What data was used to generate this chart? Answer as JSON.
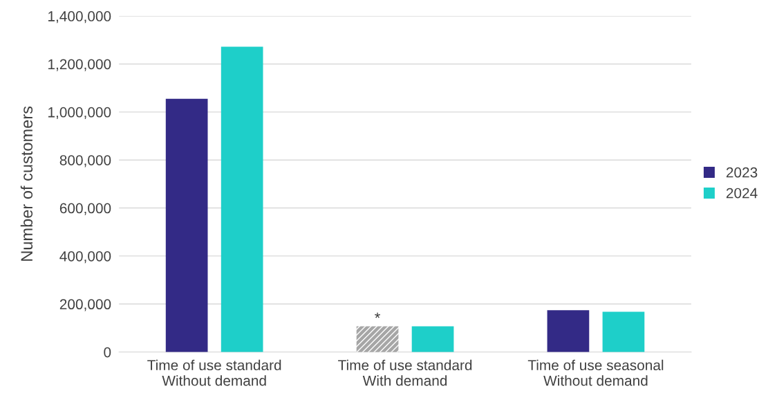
{
  "chart_data": {
    "type": "bar",
    "ylabel": "Number of customers",
    "categories": [
      "Time of use standard\nWithout demand",
      "Time of use standard\nWith demand",
      "Time of use seasonal\nWithout demand"
    ],
    "series": [
      {
        "name": "2023",
        "color": "#332a86",
        "colors": [
          "#332a86",
          "#a6a6a6",
          "#332a86"
        ],
        "values": [
          1055000,
          107000,
          174000
        ]
      },
      {
        "name": "2024",
        "color": "#1ecfc9",
        "values": [
          1272000,
          107000,
          168000
        ]
      }
    ],
    "ylim": [
      0,
      1400000
    ],
    "yticks": [
      {
        "value": 0,
        "label": "0"
      },
      {
        "value": 200000,
        "label": "200,000"
      },
      {
        "value": 400000,
        "label": "400,000"
      },
      {
        "value": 600000,
        "label": "600,000"
      },
      {
        "value": 800000,
        "label": "800,000"
      },
      {
        "value": 1000000,
        "label": "1,000,000"
      },
      {
        "value": 1200000,
        "label": "1,200,000"
      },
      {
        "value": 1400000,
        "label": "1,400,000"
      }
    ],
    "grid": "y",
    "legend": "right",
    "annotations": [
      "*"
    ]
  }
}
